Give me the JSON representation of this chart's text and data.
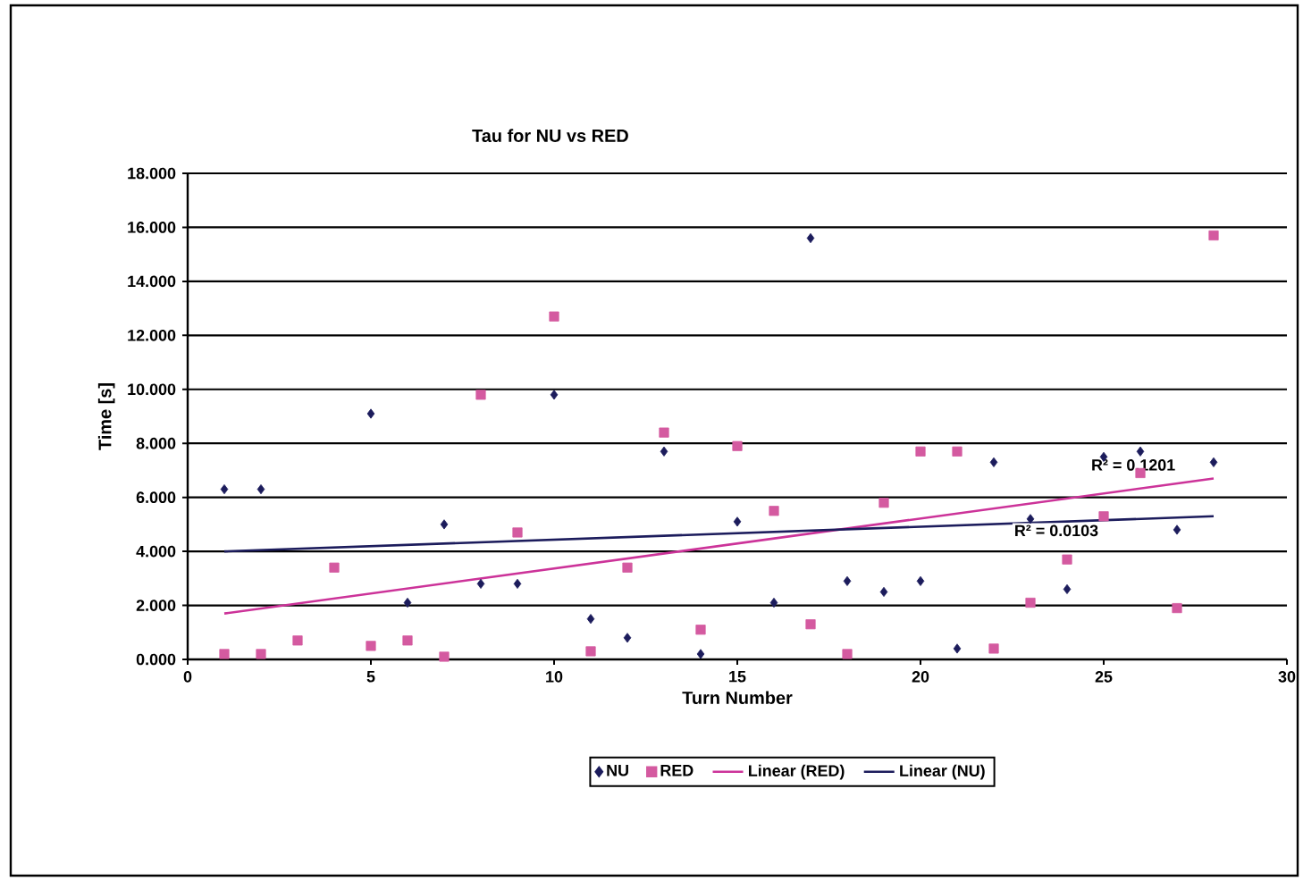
{
  "chart_data": {
    "type": "scatter",
    "title": "Tau for NU vs RED",
    "xlabel": "Turn Number",
    "ylabel": "Time [s]",
    "xlim": [
      0,
      30
    ],
    "xticks": [
      0,
      5,
      10,
      15,
      20,
      25,
      30
    ],
    "ylim": [
      0,
      18
    ],
    "yticks": [
      {
        "value": 0,
        "label": "0.000"
      },
      {
        "value": 2,
        "label": "2.000"
      },
      {
        "value": 4,
        "label": "4.000"
      },
      {
        "value": 6,
        "label": "6.000"
      },
      {
        "value": 8,
        "label": "8.000"
      },
      {
        "value": 10,
        "label": "10.000"
      },
      {
        "value": 12,
        "label": "12.000"
      },
      {
        "value": 14,
        "label": "14.000"
      },
      {
        "value": 16,
        "label": "16.000"
      },
      {
        "value": 18,
        "label": "18.000"
      }
    ],
    "grid": "y",
    "legend": "bottom",
    "series": [
      {
        "name": "NU",
        "color": "#1c1c5c",
        "marker": "diamond",
        "x": [
          1,
          2,
          5,
          6,
          7,
          8,
          9,
          10,
          11,
          12,
          13,
          14,
          15,
          16,
          17,
          18,
          19,
          20,
          21,
          22,
          23,
          24,
          25,
          26,
          27,
          28
        ],
        "values": [
          6.3,
          6.3,
          9.1,
          2.1,
          5.0,
          2.8,
          2.8,
          9.8,
          1.5,
          0.8,
          7.7,
          0.2,
          5.1,
          2.1,
          15.6,
          2.9,
          2.5,
          2.9,
          0.4,
          7.3,
          5.2,
          2.6,
          7.5,
          7.7,
          4.8,
          7.3
        ]
      },
      {
        "name": "RED",
        "color": "#d45aa0",
        "marker": "square",
        "x": [
          1,
          2,
          3,
          4,
          5,
          6,
          7,
          8,
          9,
          10,
          11,
          12,
          13,
          14,
          15,
          16,
          17,
          18,
          19,
          20,
          21,
          22,
          23,
          24,
          25,
          26,
          27,
          28
        ],
        "values": [
          0.2,
          0.2,
          0.7,
          3.4,
          0.5,
          0.7,
          0.1,
          9.8,
          4.7,
          12.7,
          0.3,
          3.4,
          8.4,
          1.1,
          7.9,
          5.5,
          1.3,
          0.2,
          5.8,
          7.7,
          7.7,
          0.4,
          2.1,
          3.7,
          5.3,
          6.9,
          1.9,
          15.7
        ]
      },
      {
        "name": "Linear (RED)",
        "type": "line",
        "color": "#cc3399",
        "marker": "none",
        "x": [
          1,
          28
        ],
        "values": [
          1.7,
          6.7
        ]
      },
      {
        "name": "Linear (NU)",
        "type": "line",
        "color": "#1c1c5c",
        "marker": "none",
        "x": [
          1,
          28
        ],
        "values": [
          4.0,
          5.3
        ]
      }
    ],
    "annotations": [
      "R² = 0.1201",
      "R² = 0.0103"
    ]
  }
}
